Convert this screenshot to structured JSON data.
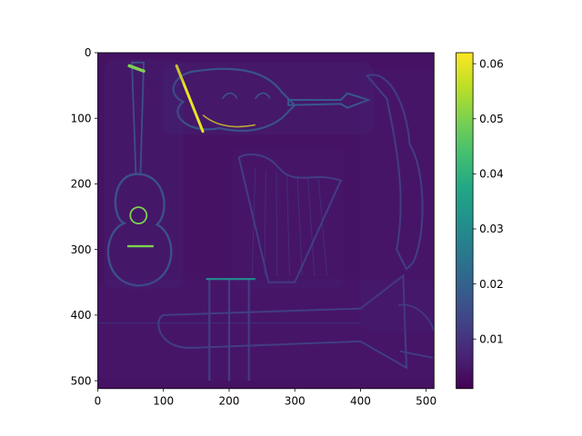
{
  "chart_data": {
    "type": "heatmap",
    "title": "",
    "xlabel": "",
    "ylabel": "",
    "image_size": [
      512,
      512
    ],
    "xlim": [
      0,
      512
    ],
    "ylim": [
      512,
      0
    ],
    "x_ticks": [
      0,
      100,
      200,
      300,
      400,
      500
    ],
    "y_ticks": [
      0,
      100,
      200,
      300,
      400,
      500
    ],
    "x_tick_labels": [
      "0",
      "100",
      "200",
      "300",
      "400",
      "500"
    ],
    "y_tick_labels": [
      "0",
      "100",
      "200",
      "300",
      "400",
      "500"
    ],
    "colormap": "viridis",
    "colorbar": {
      "range": [
        0.001,
        0.062
      ],
      "ticks": [
        0.01,
        0.02,
        0.03,
        0.04,
        0.05,
        0.06
      ],
      "tick_labels": [
        "0.01",
        "0.02",
        "0.03",
        "0.04",
        "0.05",
        "0.06"
      ],
      "placement": "right"
    },
    "background_value": 0.004,
    "depicted_objects": [
      {
        "id": "violin-figure",
        "x": [
          100,
          420
        ],
        "y": [
          15,
          125
        ],
        "typical_value": 0.018,
        "peak_value": 0.06
      },
      {
        "id": "guitar-figure",
        "x": [
          10,
          130
        ],
        "y": [
          10,
          360
        ],
        "typical_value": 0.016,
        "peak_value": 0.05
      },
      {
        "id": "harp-figure",
        "x": [
          205,
          375
        ],
        "y": [
          145,
          360
        ],
        "typical_value": 0.012,
        "peak_value": 0.025
      },
      {
        "id": "trumpet-figure",
        "x": [
          0,
          512
        ],
        "y": [
          345,
          500
        ],
        "typical_value": 0.012,
        "peak_value": 0.03
      },
      {
        "id": "cello-figure",
        "x": [
          400,
          512
        ],
        "y": [
          25,
          425
        ],
        "typical_value": 0.012,
        "peak_value": 0.025
      }
    ]
  }
}
